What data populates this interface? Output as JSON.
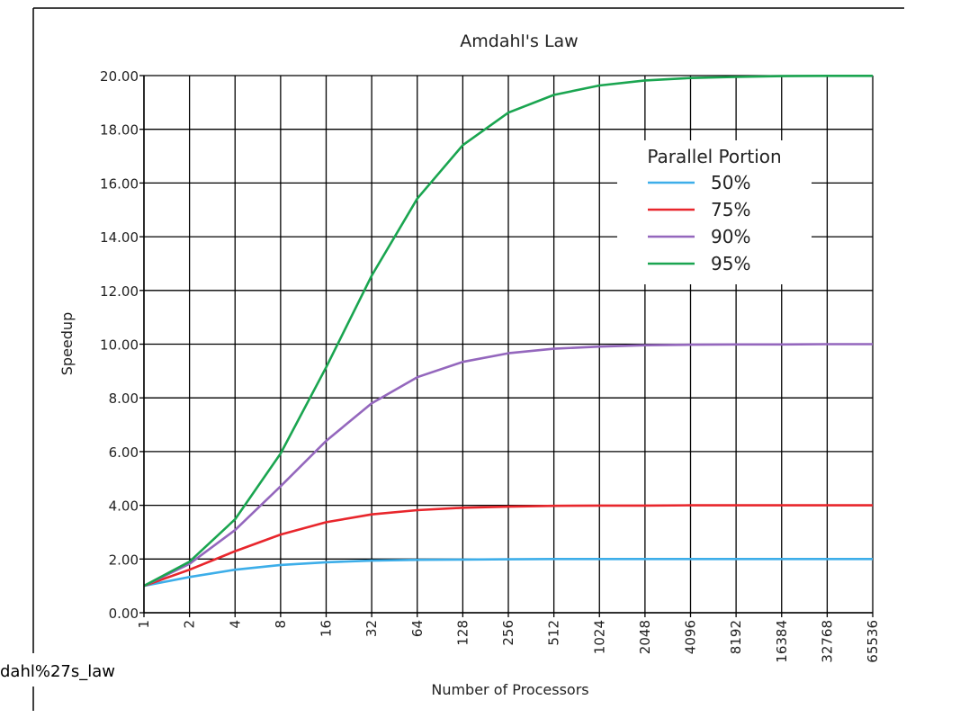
{
  "caption": "dahl%27s_law",
  "chart_data": {
    "type": "line",
    "title": "Amdahl's Law",
    "xlabel": "Number of Processors",
    "ylabel": "Speedup",
    "x_scale": "log2",
    "categories": [
      "1",
      "2",
      "4",
      "8",
      "16",
      "32",
      "64",
      "128",
      "256",
      "512",
      "1024",
      "2048",
      "4096",
      "8192",
      "16384",
      "32768",
      "65536"
    ],
    "y_ticks": [
      "0.00",
      "2.00",
      "4.00",
      "6.00",
      "8.00",
      "10.00",
      "12.00",
      "14.00",
      "16.00",
      "18.00",
      "20.00"
    ],
    "ylim": [
      0,
      20
    ],
    "grid": true,
    "legend": {
      "title": "Parallel Portion",
      "placement": "top-right"
    },
    "series": [
      {
        "name": "50%",
        "color": "#3daee9",
        "values": [
          1.0,
          1.33,
          1.6,
          1.78,
          1.88,
          1.94,
          1.97,
          1.98,
          1.99,
          2.0,
          2.0,
          2.0,
          2.0,
          2.0,
          2.0,
          2.0,
          2.0
        ]
      },
      {
        "name": "75%",
        "color": "#e8262c",
        "values": [
          1.0,
          1.6,
          2.29,
          2.91,
          3.37,
          3.66,
          3.82,
          3.91,
          3.95,
          3.98,
          3.99,
          3.99,
          4.0,
          4.0,
          4.0,
          4.0,
          4.0
        ]
      },
      {
        "name": "90%",
        "color": "#9467bd",
        "values": [
          1.0,
          1.82,
          3.08,
          4.71,
          6.4,
          7.8,
          8.77,
          9.34,
          9.66,
          9.83,
          9.91,
          9.96,
          9.98,
          9.99,
          9.99,
          10.0,
          10.0
        ]
      },
      {
        "name": "95%",
        "color": "#1aa550",
        "values": [
          1.0,
          1.9,
          3.48,
          5.93,
          9.14,
          12.55,
          15.42,
          17.41,
          18.62,
          19.28,
          19.63,
          19.82,
          19.91,
          19.95,
          19.98,
          19.99,
          19.99
        ]
      }
    ]
  }
}
